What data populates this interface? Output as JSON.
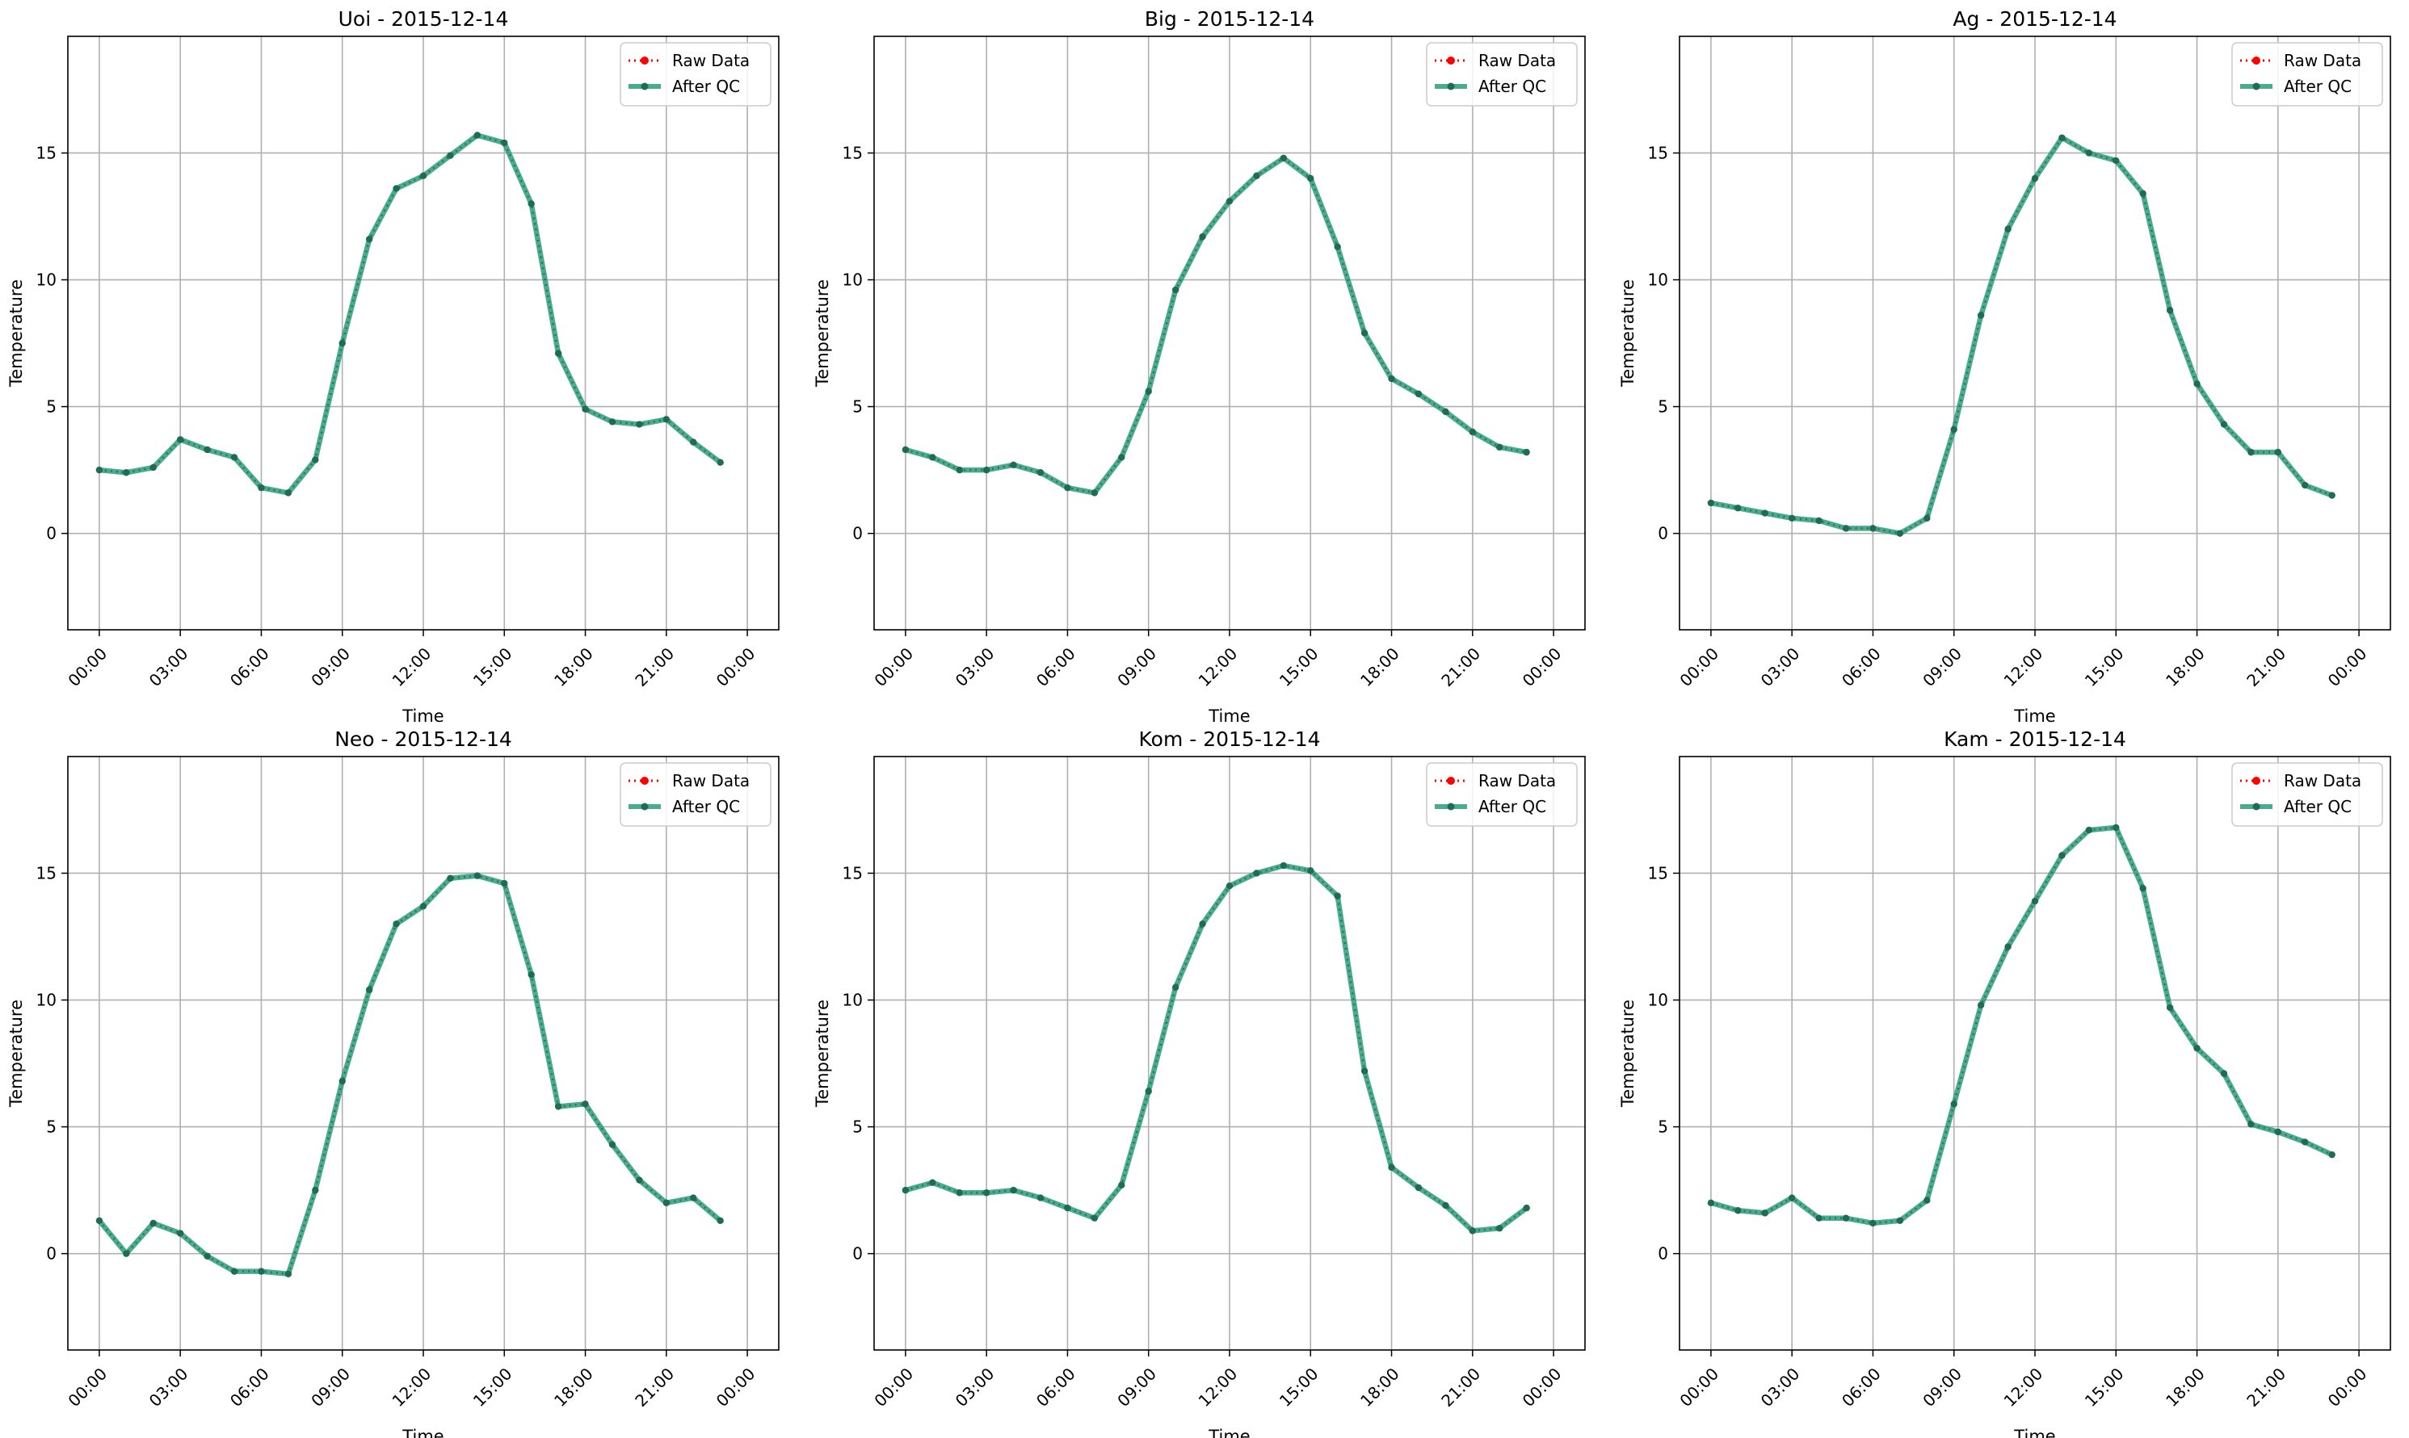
{
  "colors": {
    "raw": "#ff0000",
    "qc": "#2a9d7a",
    "qc_marker": "#1f6b55",
    "grid": "#b0b0b0",
    "axes": "#000000"
  },
  "legend": {
    "raw_label": "Raw Data",
    "qc_label": "After QC",
    "placement": "upper right"
  },
  "chart_data": [
    {
      "type": "line",
      "title": "Uoi - 2015-12-14",
      "xlabel": "Time",
      "ylabel": "Temperature",
      "x": [
        "00:00",
        "01:00",
        "02:00",
        "03:00",
        "04:00",
        "05:00",
        "06:00",
        "07:00",
        "08:00",
        "09:00",
        "10:00",
        "11:00",
        "12:00",
        "13:00",
        "14:00",
        "15:00",
        "16:00",
        "17:00",
        "18:00",
        "19:00",
        "20:00",
        "21:00",
        "22:00",
        "23:00"
      ],
      "xticks": [
        "00:00",
        "03:00",
        "06:00",
        "09:00",
        "12:00",
        "15:00",
        "18:00",
        "21:00",
        "00:00"
      ],
      "yticks": [
        0,
        5,
        10,
        15
      ],
      "ylim": [
        -3.8,
        19.6
      ],
      "grid": true,
      "series": [
        {
          "name": "Raw Data",
          "values": [
            2.5,
            2.4,
            2.6,
            3.7,
            3.3,
            3.0,
            1.8,
            1.6,
            2.9,
            7.5,
            11.6,
            13.6,
            14.1,
            14.9,
            15.7,
            15.4,
            13.0,
            7.1,
            4.9,
            4.4,
            4.3,
            4.5,
            3.6,
            2.8
          ]
        },
        {
          "name": "After QC",
          "values": [
            2.5,
            2.4,
            2.6,
            3.7,
            3.3,
            3.0,
            1.8,
            1.6,
            2.9,
            7.5,
            11.6,
            13.6,
            14.1,
            14.9,
            15.7,
            15.4,
            13.0,
            7.1,
            4.9,
            4.4,
            4.3,
            4.5,
            3.6,
            2.8
          ]
        }
      ]
    },
    {
      "type": "line",
      "title": "Big - 2015-12-14",
      "xlabel": "Time",
      "ylabel": "Temperature",
      "x": [
        "00:00",
        "01:00",
        "02:00",
        "03:00",
        "04:00",
        "05:00",
        "06:00",
        "07:00",
        "08:00",
        "09:00",
        "10:00",
        "11:00",
        "12:00",
        "13:00",
        "14:00",
        "15:00",
        "16:00",
        "17:00",
        "18:00",
        "19:00",
        "20:00",
        "21:00",
        "22:00",
        "23:00"
      ],
      "xticks": [
        "00:00",
        "03:00",
        "06:00",
        "09:00",
        "12:00",
        "15:00",
        "18:00",
        "21:00",
        "00:00"
      ],
      "yticks": [
        0,
        5,
        10,
        15
      ],
      "ylim": [
        -3.8,
        19.6
      ],
      "grid": true,
      "series": [
        {
          "name": "Raw Data",
          "values": [
            3.3,
            3.0,
            2.5,
            2.5,
            2.7,
            2.4,
            1.8,
            1.6,
            3.0,
            5.6,
            9.6,
            11.7,
            13.1,
            14.1,
            14.8,
            14.0,
            11.3,
            7.9,
            6.1,
            5.5,
            4.8,
            4.0,
            3.4,
            3.2
          ]
        },
        {
          "name": "After QC",
          "values": [
            3.3,
            3.0,
            2.5,
            2.5,
            2.7,
            2.4,
            1.8,
            1.6,
            3.0,
            5.6,
            9.6,
            11.7,
            13.1,
            14.1,
            14.8,
            14.0,
            11.3,
            7.9,
            6.1,
            5.5,
            4.8,
            4.0,
            3.4,
            3.2
          ]
        }
      ]
    },
    {
      "type": "line",
      "title": "Ag - 2015-12-14",
      "xlabel": "Time",
      "ylabel": "Temperature",
      "x": [
        "00:00",
        "01:00",
        "02:00",
        "03:00",
        "04:00",
        "05:00",
        "06:00",
        "07:00",
        "08:00",
        "09:00",
        "10:00",
        "11:00",
        "12:00",
        "13:00",
        "14:00",
        "15:00",
        "16:00",
        "17:00",
        "18:00",
        "19:00",
        "20:00",
        "21:00",
        "22:00",
        "23:00"
      ],
      "xticks": [
        "00:00",
        "03:00",
        "06:00",
        "09:00",
        "12:00",
        "15:00",
        "18:00",
        "21:00",
        "00:00"
      ],
      "yticks": [
        0,
        5,
        10,
        15
      ],
      "ylim": [
        -3.8,
        19.6
      ],
      "grid": true,
      "series": [
        {
          "name": "Raw Data",
          "values": [
            1.2,
            1.0,
            0.8,
            0.6,
            0.5,
            0.2,
            0.2,
            0.0,
            0.6,
            4.1,
            8.6,
            12.0,
            14.0,
            15.6,
            15.0,
            14.7,
            13.4,
            8.8,
            5.9,
            4.3,
            3.2,
            3.2,
            1.9,
            1.5
          ]
        },
        {
          "name": "After QC",
          "values": [
            1.2,
            1.0,
            0.8,
            0.6,
            0.5,
            0.2,
            0.2,
            0.0,
            0.6,
            4.1,
            8.6,
            12.0,
            14.0,
            15.6,
            15.0,
            14.7,
            13.4,
            8.8,
            5.9,
            4.3,
            3.2,
            3.2,
            1.9,
            1.5
          ]
        }
      ]
    },
    {
      "type": "line",
      "title": "Neo - 2015-12-14",
      "xlabel": "Time",
      "ylabel": "Temperature",
      "x": [
        "00:00",
        "01:00",
        "02:00",
        "03:00",
        "04:00",
        "05:00",
        "06:00",
        "07:00",
        "08:00",
        "09:00",
        "10:00",
        "11:00",
        "12:00",
        "13:00",
        "14:00",
        "15:00",
        "16:00",
        "17:00",
        "18:00",
        "19:00",
        "20:00",
        "21:00",
        "22:00",
        "23:00"
      ],
      "xticks": [
        "00:00",
        "03:00",
        "06:00",
        "09:00",
        "12:00",
        "15:00",
        "18:00",
        "21:00",
        "00:00"
      ],
      "yticks": [
        0,
        5,
        10,
        15
      ],
      "ylim": [
        -3.8,
        19.6
      ],
      "grid": true,
      "series": [
        {
          "name": "Raw Data",
          "values": [
            1.3,
            0.0,
            1.2,
            0.8,
            -0.1,
            -0.7,
            -0.7,
            -0.8,
            2.5,
            6.8,
            10.4,
            13.0,
            13.7,
            14.8,
            14.9,
            14.6,
            11.0,
            5.8,
            5.9,
            4.3,
            2.9,
            2.0,
            2.2,
            1.3
          ]
        },
        {
          "name": "After QC",
          "values": [
            1.3,
            0.0,
            1.2,
            0.8,
            -0.1,
            -0.7,
            -0.7,
            -0.8,
            2.5,
            6.8,
            10.4,
            13.0,
            13.7,
            14.8,
            14.9,
            14.6,
            11.0,
            5.8,
            5.9,
            4.3,
            2.9,
            2.0,
            2.2,
            1.3
          ]
        }
      ]
    },
    {
      "type": "line",
      "title": "Kom - 2015-12-14",
      "xlabel": "Time",
      "ylabel": "Temperature",
      "x": [
        "00:00",
        "01:00",
        "02:00",
        "03:00",
        "04:00",
        "05:00",
        "06:00",
        "07:00",
        "08:00",
        "09:00",
        "10:00",
        "11:00",
        "12:00",
        "13:00",
        "14:00",
        "15:00",
        "16:00",
        "17:00",
        "18:00",
        "19:00",
        "20:00",
        "21:00",
        "22:00",
        "23:00"
      ],
      "xticks": [
        "00:00",
        "03:00",
        "06:00",
        "09:00",
        "12:00",
        "15:00",
        "18:00",
        "21:00",
        "00:00"
      ],
      "yticks": [
        0,
        5,
        10,
        15
      ],
      "ylim": [
        -3.8,
        19.6
      ],
      "grid": true,
      "series": [
        {
          "name": "Raw Data",
          "values": [
            2.5,
            2.8,
            2.4,
            2.4,
            2.5,
            2.2,
            1.8,
            1.4,
            2.7,
            6.4,
            10.5,
            13.0,
            14.5,
            15.0,
            15.3,
            15.1,
            14.1,
            7.2,
            3.4,
            2.6,
            1.9,
            0.9,
            1.0,
            1.8
          ]
        },
        {
          "name": "After QC",
          "values": [
            2.5,
            2.8,
            2.4,
            2.4,
            2.5,
            2.2,
            1.8,
            1.4,
            2.7,
            6.4,
            10.5,
            13.0,
            14.5,
            15.0,
            15.3,
            15.1,
            14.1,
            7.2,
            3.4,
            2.6,
            1.9,
            0.9,
            1.0,
            1.8
          ]
        }
      ]
    },
    {
      "type": "line",
      "title": "Kam - 2015-12-14",
      "xlabel": "Time",
      "ylabel": "Temperature",
      "x": [
        "00:00",
        "01:00",
        "02:00",
        "03:00",
        "04:00",
        "05:00",
        "06:00",
        "07:00",
        "08:00",
        "09:00",
        "10:00",
        "11:00",
        "12:00",
        "13:00",
        "14:00",
        "15:00",
        "16:00",
        "17:00",
        "18:00",
        "19:00",
        "20:00",
        "21:00",
        "22:00",
        "23:00"
      ],
      "xticks": [
        "00:00",
        "03:00",
        "06:00",
        "09:00",
        "12:00",
        "15:00",
        "18:00",
        "21:00",
        "00:00"
      ],
      "yticks": [
        0,
        5,
        10,
        15
      ],
      "ylim": [
        -3.8,
        19.6
      ],
      "grid": true,
      "series": [
        {
          "name": "Raw Data",
          "values": [
            2.0,
            1.7,
            1.6,
            2.2,
            1.4,
            1.4,
            1.2,
            1.3,
            2.1,
            5.9,
            9.8,
            12.1,
            13.9,
            15.7,
            16.7,
            16.8,
            14.4,
            9.7,
            8.1,
            7.1,
            5.1,
            4.8,
            4.4,
            3.9
          ]
        },
        {
          "name": "After QC",
          "values": [
            2.0,
            1.7,
            1.6,
            2.2,
            1.4,
            1.4,
            1.2,
            1.3,
            2.1,
            5.9,
            9.8,
            12.1,
            13.9,
            15.7,
            16.7,
            16.8,
            14.4,
            9.7,
            8.1,
            7.1,
            5.1,
            4.8,
            4.4,
            3.9
          ]
        }
      ]
    }
  ]
}
